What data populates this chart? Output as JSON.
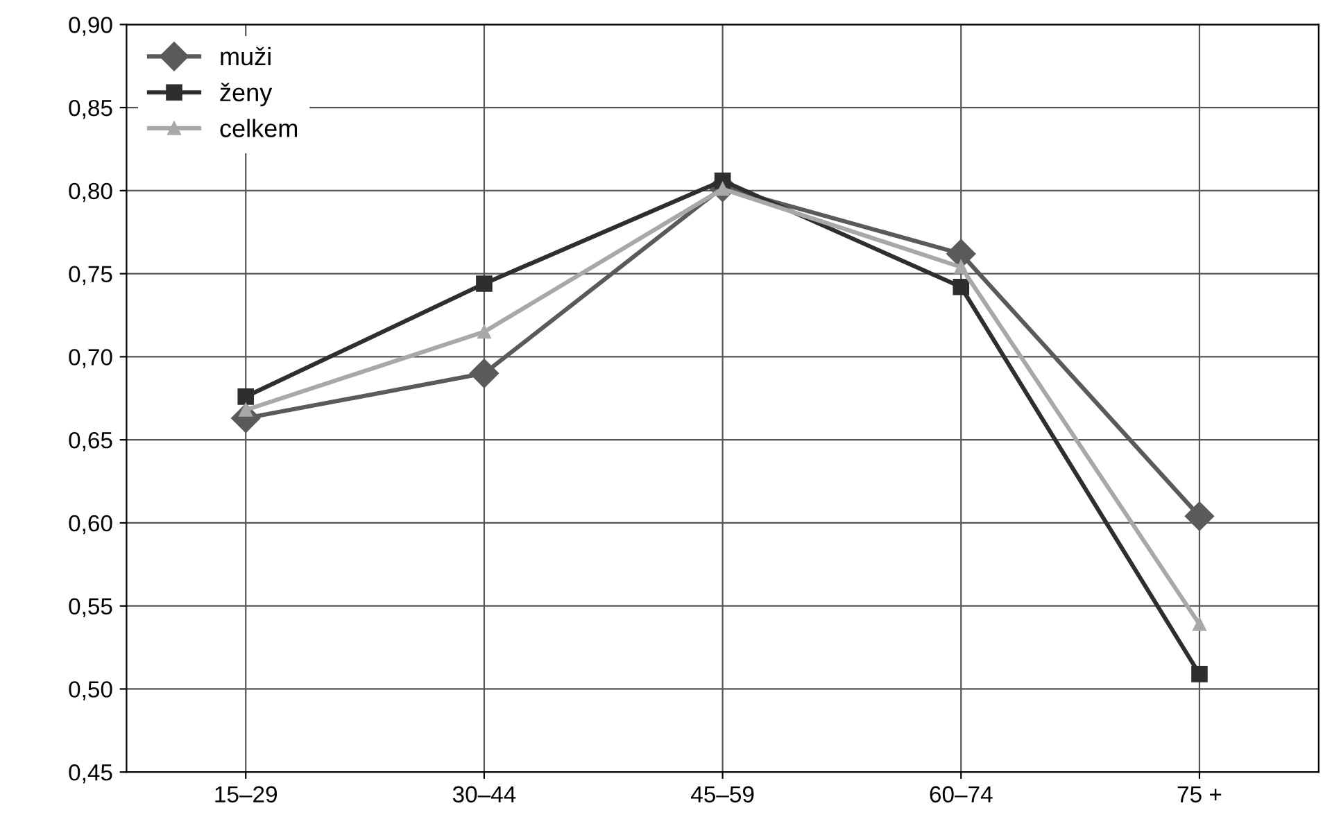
{
  "chart_data": {
    "type": "line",
    "categories": [
      "15–29",
      "30–44",
      "45–59",
      "60–74",
      "75 +"
    ],
    "series": [
      {
        "name": "muži",
        "color": "#5a5a5a",
        "marker": "diamond",
        "values": [
          0.663,
          0.69,
          0.802,
          0.762,
          0.604
        ]
      },
      {
        "name": "ženy",
        "color": "#2e2e2e",
        "marker": "square",
        "values": [
          0.676,
          0.744,
          0.806,
          0.742,
          0.509
        ]
      },
      {
        "name": "celkem",
        "color": "#a8a8a8",
        "marker": "triangle",
        "values": [
          0.668,
          0.715,
          0.801,
          0.754,
          0.539
        ]
      }
    ],
    "ylim": [
      0.45,
      0.9
    ],
    "yticks": [
      {
        "value": 0.45,
        "label": "0,45"
      },
      {
        "value": 0.5,
        "label": "0,50"
      },
      {
        "value": 0.55,
        "label": "0,55"
      },
      {
        "value": 0.6,
        "label": "0,60"
      },
      {
        "value": 0.65,
        "label": "0,65"
      },
      {
        "value": 0.7,
        "label": "0,70"
      },
      {
        "value": 0.75,
        "label": "0,75"
      },
      {
        "value": 0.8,
        "label": "0,80"
      },
      {
        "value": 0.85,
        "label": "0,85"
      },
      {
        "value": 0.9,
        "label": "0,90"
      }
    ],
    "grid": true,
    "legend": "top left",
    "line_style": "solid"
  }
}
